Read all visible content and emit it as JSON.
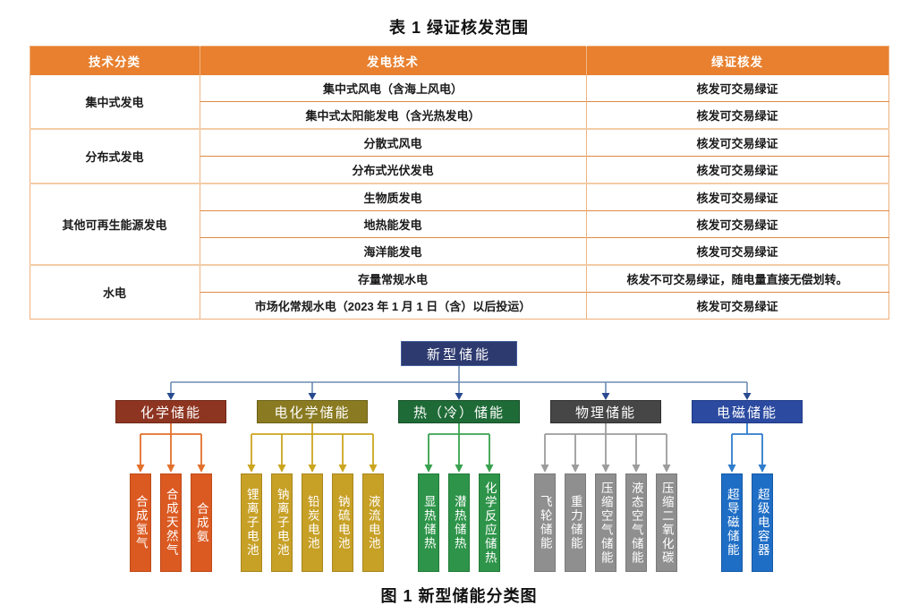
{
  "table": {
    "title": "表 1  绿证核发范围",
    "header_bg": "#e8802f",
    "columns": [
      "技术分类",
      "发电技术",
      "绿证核发"
    ],
    "groups": [
      {
        "category": "集中式发电",
        "rows": [
          [
            "集中式风电（含海上风电）",
            "核发可交易绿证"
          ],
          [
            "集中式太阳能发电（含光热发电）",
            "核发可交易绿证"
          ]
        ]
      },
      {
        "category": "分布式发电",
        "rows": [
          [
            "分散式风电",
            "核发可交易绿证"
          ],
          [
            "分布式光伏发电",
            "核发可交易绿证"
          ]
        ]
      },
      {
        "category": "其他可再生能源发电",
        "rows": [
          [
            "生物质发电",
            "核发可交易绿证"
          ],
          [
            "地热能发电",
            "核发可交易绿证"
          ],
          [
            "海洋能发电",
            "核发可交易绿证"
          ]
        ]
      },
      {
        "category": "水电",
        "rows": [
          [
            "存量常规水电",
            "核发不可交易绿证，随电量直接无偿划转。"
          ],
          [
            "市场化常规水电（2023 年 1 月 1 日（含）以后投运）",
            "核发可交易绿证"
          ]
        ]
      }
    ]
  },
  "diagram": {
    "caption": "图 1  新型储能分类图",
    "root": {
      "label": "新型储能",
      "fill": "#2d3a6f",
      "border": "#44609d"
    },
    "connector": {
      "line": "#6c8cb4",
      "arrow": "#27498f"
    },
    "branches": [
      {
        "label": "化学储能",
        "fill": "#8e3521",
        "border": "#6f2717",
        "line": "#e2702c",
        "leaf_fill": "#db5a22",
        "leaf_border": "#bf4a18",
        "leaves": [
          "合成氢气",
          "合成天然气",
          "合成氨"
        ]
      },
      {
        "label": "电化学储能",
        "fill": "#8a7b22",
        "border": "#6d6018",
        "line": "#cba51e",
        "leaf_fill": "#c7a026",
        "leaf_border": "#a9871c",
        "leaves": [
          "锂离子电池",
          "钠离子电池",
          "铅炭电池",
          "钠硫电池",
          "液流电池"
        ]
      },
      {
        "label": "热（冷）储能",
        "fill": "#1f6b37",
        "border": "#154f27",
        "line": "#39a24f",
        "leaf_fill": "#2d9449",
        "leaf_border": "#217a39",
        "leaves": [
          "显热储热",
          "潜热储热",
          "化学反应储热"
        ]
      },
      {
        "label": "物理储能",
        "fill": "#464646",
        "border": "#2f2f2f",
        "line": "#9c9c9c",
        "leaf_fill": "#8f8f8f",
        "leaf_border": "#7a7a7a",
        "leaves": [
          "飞轮储能",
          "重力储能",
          "压缩空气储能",
          "液态空气储能",
          "压缩二氧化碳"
        ]
      },
      {
        "label": "电磁储能",
        "fill": "#2b4aa0",
        "border": "#1f3a85",
        "line": "#2e7ccb",
        "leaf_fill": "#1f6ec6",
        "leaf_border": "#1659a5",
        "leaves": [
          "超导磁储能",
          "超级电容器"
        ]
      }
    ]
  }
}
